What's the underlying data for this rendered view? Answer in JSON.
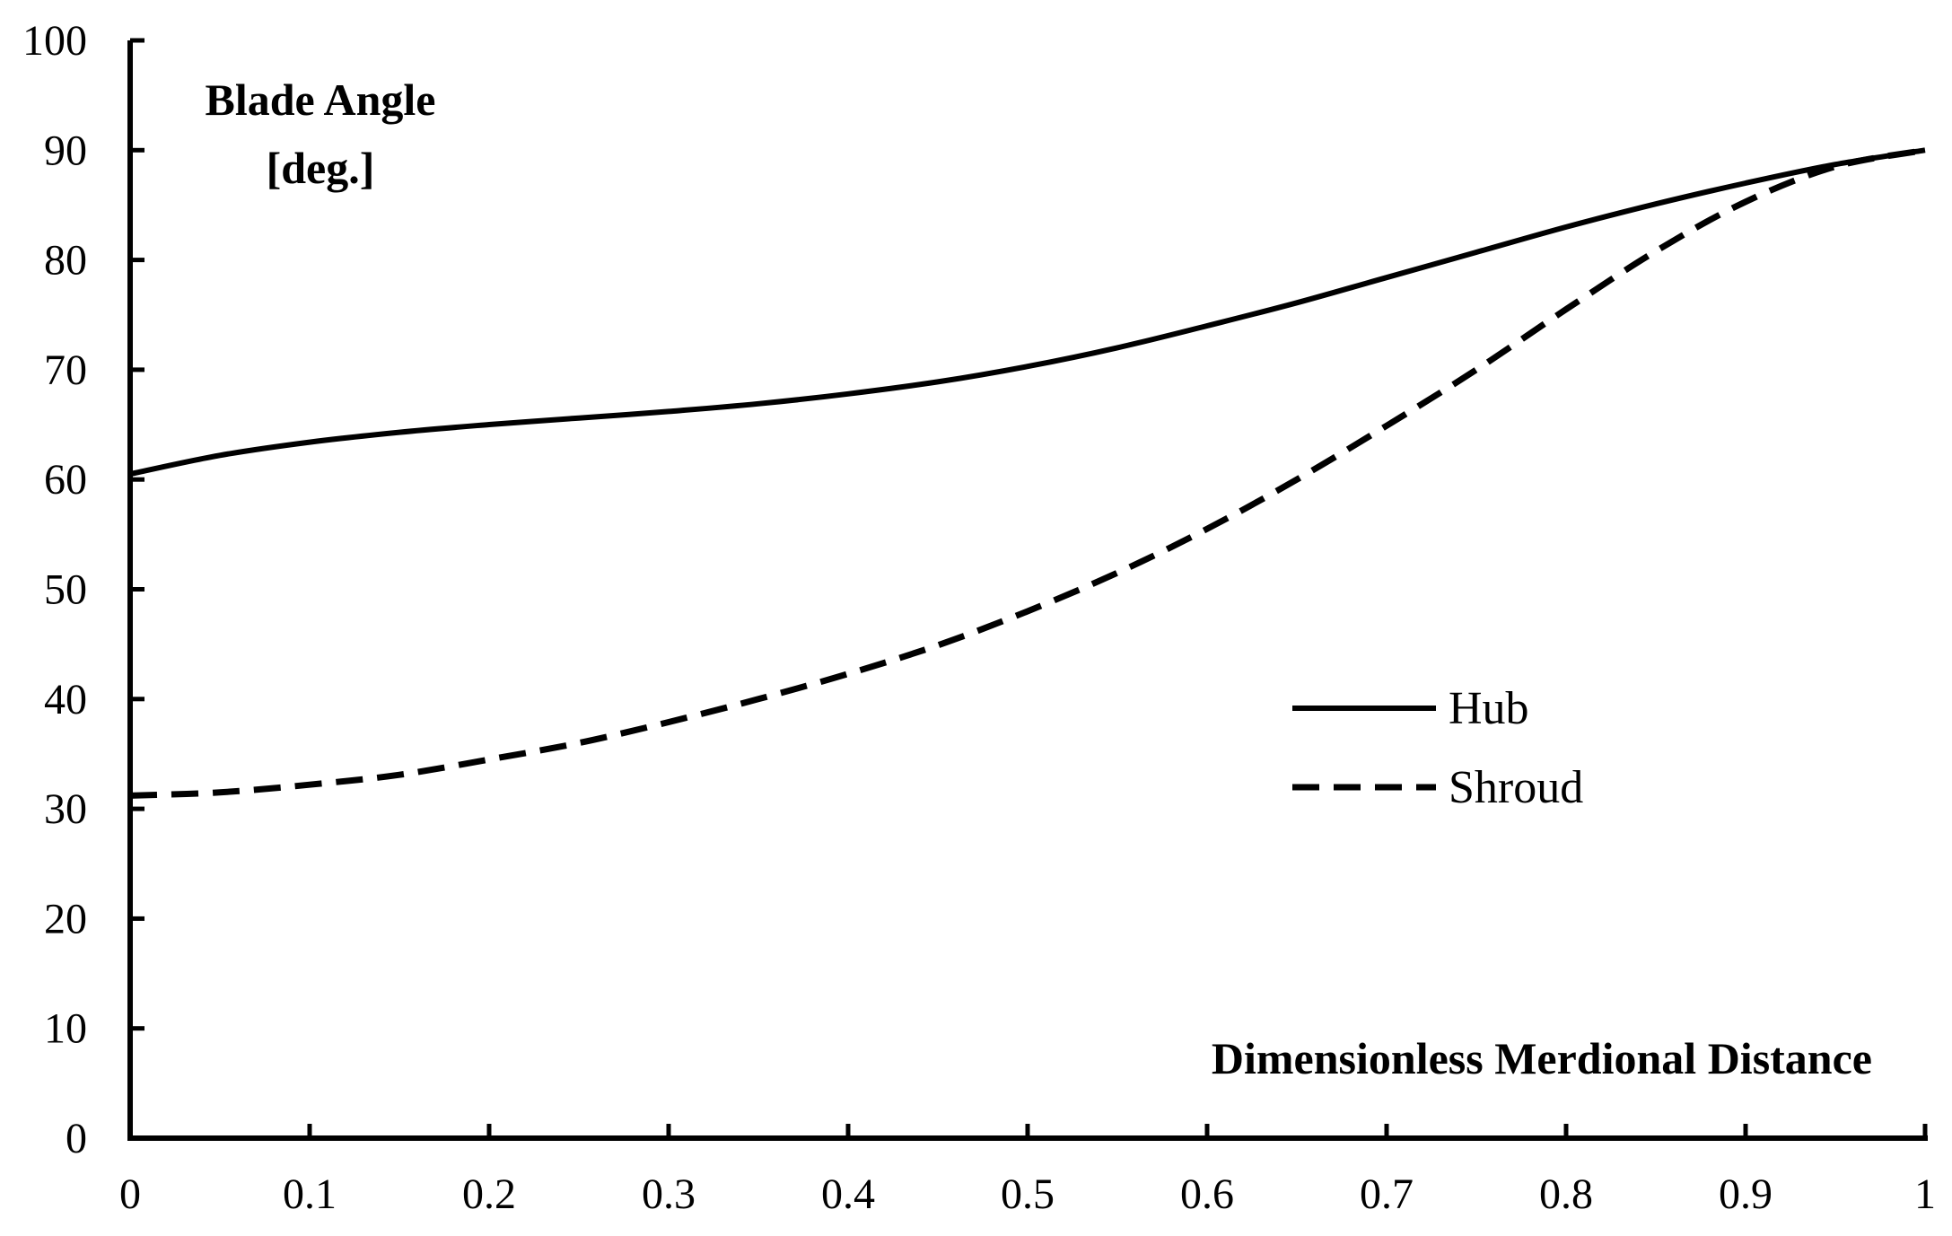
{
  "chart_data": {
    "type": "line",
    "title": "",
    "ylabel_line1": "Blade Angle",
    "ylabel_line2": "[deg.]",
    "xlabel": "Dimensionless Merdional Distance",
    "xlim": [
      0,
      1
    ],
    "ylim": [
      0,
      100
    ],
    "xticks": [
      0,
      0.1,
      0.2,
      0.3,
      0.4,
      0.5,
      0.6,
      0.7,
      0.8,
      0.9,
      1
    ],
    "xtick_labels": [
      "0",
      "0.1",
      "0.2",
      "0.3",
      "0.4",
      "0.5",
      "0.6",
      "0.7",
      "0.8",
      "0.9",
      "1"
    ],
    "yticks": [
      0,
      10,
      20,
      30,
      40,
      50,
      60,
      70,
      80,
      90,
      100
    ],
    "ytick_labels": [
      "0",
      "10",
      "20",
      "30",
      "40",
      "50",
      "60",
      "70",
      "80",
      "90",
      "100"
    ],
    "grid": false,
    "legend_position": "center-right",
    "series": [
      {
        "name": "Hub",
        "style": "solid",
        "color": "#000000",
        "x": [
          0,
          0.05,
          0.1,
          0.15,
          0.2,
          0.25,
          0.3,
          0.35,
          0.4,
          0.45,
          0.5,
          0.55,
          0.6,
          0.65,
          0.7,
          0.75,
          0.8,
          0.85,
          0.9,
          0.95,
          1
        ],
        "y": [
          60.5,
          62.2,
          63.4,
          64.3,
          65.0,
          65.6,
          66.2,
          66.9,
          67.8,
          68.9,
          70.3,
          72.0,
          74.0,
          76.1,
          78.4,
          80.7,
          83.0,
          85.1,
          87.0,
          88.7,
          90.0
        ]
      },
      {
        "name": "Shroud",
        "style": "dashed",
        "color": "#000000",
        "x": [
          0,
          0.05,
          0.1,
          0.15,
          0.2,
          0.25,
          0.3,
          0.35,
          0.4,
          0.45,
          0.5,
          0.55,
          0.6,
          0.65,
          0.7,
          0.75,
          0.8,
          0.85,
          0.9,
          0.95,
          1
        ],
        "y": [
          31.2,
          31.5,
          32.2,
          33.1,
          34.5,
          36.0,
          37.9,
          40.0,
          42.3,
          44.9,
          48.0,
          51.5,
          55.5,
          60.0,
          64.9,
          70.0,
          75.5,
          80.8,
          85.3,
          88.5,
          90.0
        ]
      }
    ]
  }
}
